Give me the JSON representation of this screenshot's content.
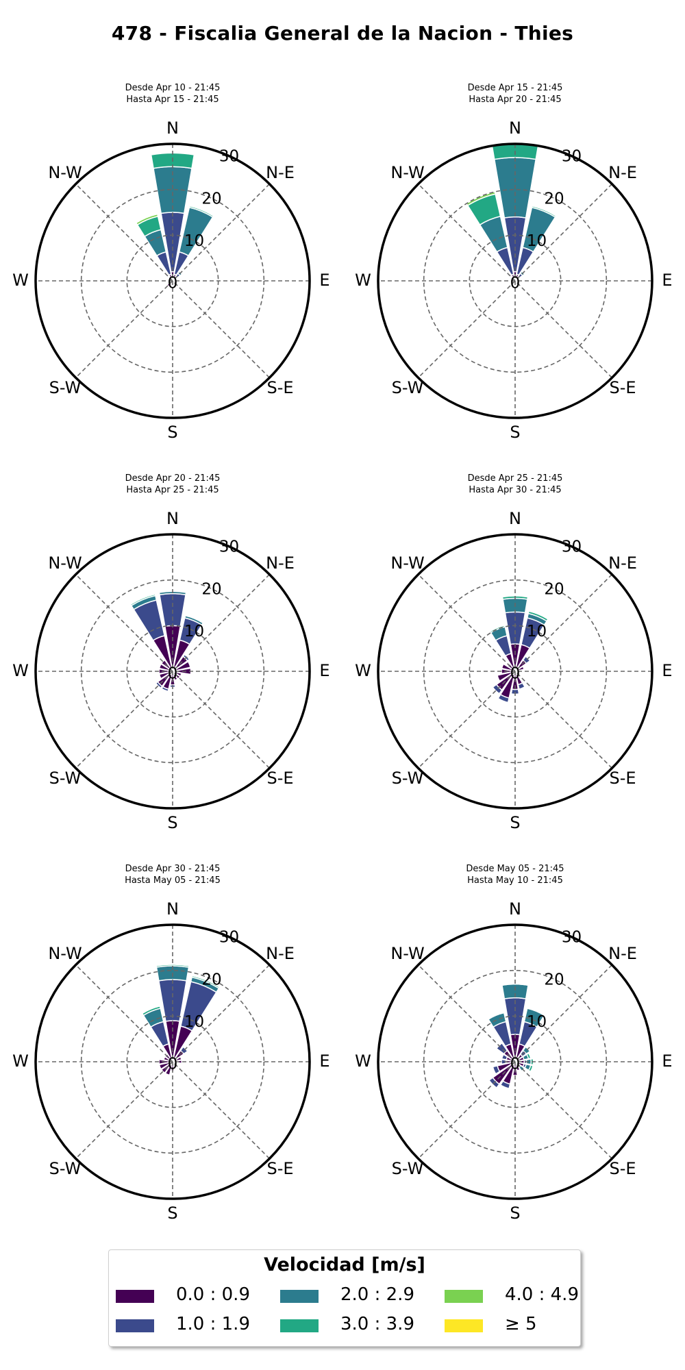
{
  "title": "478 - Fiscalia General de la Nacion - Thies",
  "legend": {
    "title": "Velocidad [m/s]",
    "bins": [
      {
        "label": "0.0 : 0.9",
        "color": "#440154"
      },
      {
        "label": "1.0 : 1.9",
        "color": "#3b4a8c"
      },
      {
        "label": "2.0 : 2.9",
        "color": "#2c7c8e"
      },
      {
        "label": "3.0 : 3.9",
        "color": "#22a884"
      },
      {
        "label": "4.0 : 4.9",
        "color": "#7ad151"
      },
      {
        "label": "≥  5",
        "color": "#fde725"
      }
    ]
  },
  "chart_data": [
    {
      "type": "windrose",
      "subtitle_line1": "Desde Apr 10 - 21:45",
      "subtitle_line2": "Hasta Apr 15 - 21:45",
      "directions": [
        "N",
        "NNE",
        "NE",
        "ENE",
        "E",
        "ESE",
        "SE",
        "SSE",
        "S",
        "SSW",
        "SW",
        "WSW",
        "W",
        "WNW",
        "NW",
        "NNW"
      ],
      "direction_labels": [
        "N",
        "N-E",
        "E",
        "S-E",
        "S",
        "S-W",
        "W",
        "N-W"
      ],
      "radial_ticks": [
        0,
        10,
        20,
        30
      ],
      "rmax": 30,
      "series": [
        {
          "name": "0.0 : 0.9",
          "values": [
            2,
            1.5,
            1,
            1,
            1,
            0.5,
            0.5,
            0.5,
            0.5,
            1,
            1.5,
            1,
            1,
            1,
            1,
            1.5
          ]
        },
        {
          "name": "1.0 : 1.9",
          "values": [
            13,
            5,
            1,
            0,
            0,
            0,
            0,
            0,
            0,
            0,
            0,
            0,
            0,
            0,
            0,
            5
          ]
        },
        {
          "name": "2.0 : 2.9",
          "values": [
            10,
            10,
            0.5,
            0,
            0,
            0,
            0,
            0,
            0,
            0,
            0,
            0,
            0,
            0,
            0,
            5
          ]
        },
        {
          "name": "3.0 : 3.9",
          "values": [
            3,
            0.3,
            0,
            0,
            0,
            0,
            0,
            0,
            0,
            0,
            0,
            0,
            0,
            0,
            0,
            3
          ]
        },
        {
          "name": "4.0 : 4.9",
          "values": [
            0,
            0,
            0,
            0,
            0,
            0,
            0,
            0,
            0,
            0,
            0,
            0,
            0,
            0,
            0,
            0.5
          ]
        },
        {
          "name": "≥  5",
          "values": [
            0,
            0,
            0,
            0,
            0,
            0,
            0,
            0,
            0,
            0,
            0,
            0,
            0,
            0,
            0,
            0.2
          ]
        }
      ]
    },
    {
      "type": "windrose",
      "subtitle_line1": "Desde Apr 15 - 21:45",
      "subtitle_line2": "Hasta Apr 20 - 21:45",
      "directions": [
        "N",
        "NNE",
        "NE",
        "ENE",
        "E",
        "ESE",
        "SE",
        "SSE",
        "S",
        "SSW",
        "SW",
        "WSW",
        "W",
        "WNW",
        "NW",
        "NNW"
      ],
      "direction_labels": [
        "N",
        "N-E",
        "E",
        "S-E",
        "S",
        "S-W",
        "W",
        "N-W"
      ],
      "radial_ticks": [
        0,
        10,
        20,
        30
      ],
      "rmax": 30,
      "series": [
        {
          "name": "0.0 : 0.9",
          "values": [
            2,
            1.5,
            1,
            0.5,
            0.5,
            0.5,
            0.5,
            0.5,
            0.5,
            0.5,
            1,
            1,
            1,
            1,
            1,
            1.5
          ]
        },
        {
          "name": "1.0 : 1.9",
          "values": [
            12,
            6,
            1,
            0,
            0,
            0,
            0,
            0,
            0,
            0,
            0,
            0,
            0,
            0,
            0,
            6
          ]
        },
        {
          "name": "2.0 : 2.9",
          "values": [
            13,
            9,
            0.5,
            0,
            0,
            0,
            0,
            0,
            0,
            0,
            0,
            0,
            0,
            0,
            0,
            7
          ]
        },
        {
          "name": "3.0 : 3.9",
          "values": [
            3,
            0.3,
            0,
            0,
            0,
            0,
            0,
            0,
            0,
            0,
            0,
            0,
            0,
            0,
            0,
            5
          ]
        },
        {
          "name": "4.0 : 4.9",
          "values": [
            0,
            0,
            0,
            0,
            0,
            0,
            0,
            0,
            0,
            0,
            0,
            0,
            0,
            0,
            0,
            0.5
          ]
        },
        {
          "name": "≥  5",
          "values": [
            0,
            0,
            0,
            0,
            0,
            0,
            0,
            0,
            0,
            0,
            0,
            0,
            0,
            0,
            0,
            0
          ]
        }
      ]
    },
    {
      "type": "windrose",
      "subtitle_line1": "Desde Apr 20 - 21:45",
      "subtitle_line2": "Hasta Apr 25 - 21:45",
      "directions": [
        "N",
        "NNE",
        "NE",
        "ENE",
        "E",
        "ESE",
        "SE",
        "SSE",
        "S",
        "SSW",
        "SW",
        "WSW",
        "W",
        "WNW",
        "NW",
        "NNW"
      ],
      "direction_labels": [
        "N",
        "N-E",
        "E",
        "S-E",
        "S",
        "S-W",
        "W",
        "N-W"
      ],
      "radial_ticks": [
        0,
        10,
        20,
        30
      ],
      "rmax": 30,
      "series": [
        {
          "name": "0.0 : 0.9",
          "values": [
            10,
            7,
            4,
            4,
            4,
            2,
            2,
            2,
            3,
            4,
            4,
            3,
            3,
            3,
            3,
            8
          ]
        },
        {
          "name": "1.0 : 1.9",
          "values": [
            7,
            5,
            0.5,
            0,
            0,
            0,
            0,
            0,
            0.5,
            0.5,
            0.5,
            0,
            0,
            0,
            0,
            8
          ]
        },
        {
          "name": "2.0 : 2.9",
          "values": [
            0.5,
            0.5,
            0,
            0,
            0,
            0,
            0,
            0,
            0,
            0,
            0,
            0,
            0,
            0,
            0,
            1
          ]
        },
        {
          "name": "3.0 : 3.9",
          "values": [
            0,
            0,
            0,
            0,
            0,
            0,
            0,
            0,
            0,
            0,
            0,
            0,
            0,
            0,
            0,
            0.3
          ]
        },
        {
          "name": "4.0 : 4.9",
          "values": [
            0,
            0,
            0,
            0,
            0,
            0,
            0,
            0,
            0,
            0,
            0,
            0,
            0,
            0,
            0,
            0
          ]
        },
        {
          "name": "≥  5",
          "values": [
            0,
            0,
            0,
            0,
            0,
            0,
            0,
            0,
            0,
            0,
            0,
            0,
            0,
            0,
            0,
            0
          ]
        }
      ]
    },
    {
      "type": "windrose",
      "subtitle_line1": "Desde Apr 25 - 21:45",
      "subtitle_line2": "Hasta Apr 30 - 21:45",
      "directions": [
        "N",
        "NNE",
        "NE",
        "ENE",
        "E",
        "ESE",
        "SE",
        "SSE",
        "S",
        "SSW",
        "SW",
        "WSW",
        "W",
        "WNW",
        "NW",
        "NNW"
      ],
      "direction_labels": [
        "N",
        "N-E",
        "E",
        "S-E",
        "S",
        "S-W",
        "W",
        "N-W"
      ],
      "radial_ticks": [
        0,
        10,
        20,
        30
      ],
      "rmax": 30,
      "series": [
        {
          "name": "0.0 : 0.9",
          "values": [
            6,
            6,
            3,
            2,
            1,
            1,
            1,
            3,
            4,
            6,
            5,
            4,
            3,
            3,
            2,
            4
          ]
        },
        {
          "name": "1.0 : 1.9",
          "values": [
            7,
            6,
            1,
            0,
            0,
            0,
            0,
            1,
            1,
            1,
            1,
            0,
            0,
            0,
            0,
            4
          ]
        },
        {
          "name": "2.0 : 2.9",
          "values": [
            3,
            1,
            0,
            0,
            0,
            0,
            0,
            0,
            0,
            0,
            0,
            0,
            0,
            0,
            0,
            2
          ]
        },
        {
          "name": "3.0 : 3.9",
          "values": [
            0.5,
            0.5,
            0,
            0,
            0,
            0,
            0,
            0,
            0,
            0,
            0,
            0,
            0,
            0,
            0,
            0.3
          ]
        },
        {
          "name": "4.0 : 4.9",
          "values": [
            0,
            0,
            0,
            0,
            0,
            0,
            0,
            0,
            0,
            0,
            0,
            0,
            0,
            0,
            0,
            0
          ]
        },
        {
          "name": "≥  5",
          "values": [
            0,
            0,
            0,
            0,
            0,
            0,
            0,
            0,
            0,
            0,
            0,
            0,
            0,
            0,
            0,
            0
          ]
        }
      ]
    },
    {
      "type": "windrose",
      "subtitle_line1": "Desde Apr 30 - 21:45",
      "subtitle_line2": "Hasta May 05 - 21:45",
      "directions": [
        "N",
        "NNE",
        "NE",
        "ENE",
        "E",
        "ESE",
        "SE",
        "SSE",
        "S",
        "SSW",
        "SW",
        "WSW",
        "W",
        "WNW",
        "NW",
        "NNW"
      ],
      "direction_labels": [
        "N",
        "N-E",
        "E",
        "S-E",
        "S",
        "S-W",
        "W",
        "N-W"
      ],
      "radial_ticks": [
        0,
        10,
        20,
        30
      ],
      "rmax": 30,
      "series": [
        {
          "name": "0.0 : 0.9",
          "values": [
            9,
            8,
            3,
            2,
            2,
            1,
            1,
            1,
            2,
            3,
            3,
            3,
            3,
            2,
            2,
            4
          ]
        },
        {
          "name": "1.0 : 1.9",
          "values": [
            9,
            10,
            1,
            0,
            0,
            0,
            0,
            0,
            0,
            0,
            0,
            0,
            0,
            0,
            0,
            5
          ]
        },
        {
          "name": "2.0 : 2.9",
          "values": [
            3,
            1,
            0,
            0,
            0,
            0,
            0,
            0,
            0,
            0,
            0,
            0,
            0,
            0,
            0,
            3
          ]
        },
        {
          "name": "3.0 : 3.9",
          "values": [
            0.3,
            0.3,
            0,
            0,
            0,
            0,
            0,
            0,
            0,
            0,
            0,
            0,
            0,
            0,
            0,
            0.5
          ]
        },
        {
          "name": "4.0 : 4.9",
          "values": [
            0,
            0,
            0,
            0,
            0,
            0,
            0,
            0,
            0,
            0,
            0,
            0,
            0,
            0,
            0,
            0.2
          ]
        },
        {
          "name": "≥  5",
          "values": [
            0,
            0,
            0,
            0,
            0,
            0,
            0,
            0,
            0,
            0,
            0,
            0,
            0,
            0,
            0,
            0
          ]
        }
      ]
    },
    {
      "type": "windrose",
      "subtitle_line1": "Desde May 05 - 21:45",
      "subtitle_line2": "Hasta May 10 - 21:45",
      "directions": [
        "N",
        "NNE",
        "NE",
        "ENE",
        "E",
        "ESE",
        "SE",
        "SSE",
        "S",
        "SSW",
        "SW",
        "WSW",
        "W",
        "WNW",
        "NW",
        "NNW"
      ],
      "direction_labels": [
        "N",
        "N-E",
        "E",
        "S-E",
        "S",
        "S-W",
        "W",
        "N-W"
      ],
      "radial_ticks": [
        0,
        10,
        20,
        30
      ],
      "rmax": 30,
      "series": [
        {
          "name": "0.0 : 0.9",
          "values": [
            6,
            4,
            2,
            2,
            2,
            2,
            1,
            2,
            3,
            5,
            6,
            4,
            2,
            2,
            3,
            4
          ]
        },
        {
          "name": "1.0 : 1.9",
          "values": [
            8,
            5,
            1,
            0,
            0.5,
            0.5,
            0.5,
            0,
            0,
            1,
            1,
            1,
            1,
            1,
            2,
            5
          ]
        },
        {
          "name": "2.0 : 2.9",
          "values": [
            3,
            3,
            1,
            1,
            1,
            1,
            1,
            0,
            0,
            0,
            0,
            0,
            0,
            0,
            0,
            2
          ]
        },
        {
          "name": "3.0 : 3.9",
          "values": [
            0.2,
            0.2,
            0.2,
            0.5,
            0.5,
            0.5,
            0.2,
            0,
            0,
            0,
            0,
            0,
            0,
            0,
            0,
            0.2
          ]
        },
        {
          "name": "4.0 : 4.9",
          "values": [
            0,
            0,
            0,
            0,
            0,
            0,
            0,
            0,
            0,
            0,
            0,
            0,
            0,
            0,
            0,
            0
          ]
        },
        {
          "name": "≥  5",
          "values": [
            0,
            0,
            0,
            0,
            0,
            0,
            0,
            0,
            0,
            0,
            0,
            0,
            0,
            0,
            0,
            0
          ]
        }
      ]
    }
  ]
}
